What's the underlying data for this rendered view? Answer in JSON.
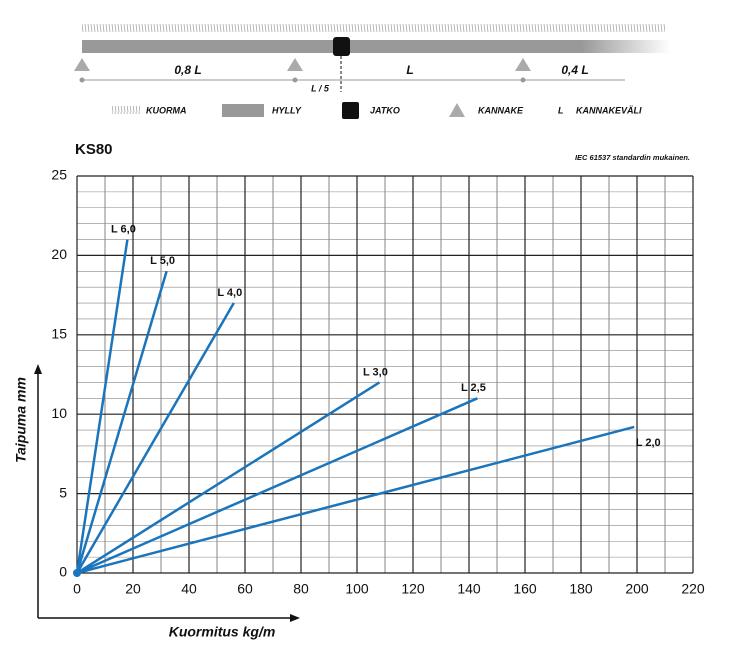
{
  "diagram": {
    "span_labels": [
      "0,8 L",
      "L",
      "0,4 L"
    ],
    "joint_offset": "L / 5",
    "legend": [
      "KUORMA",
      "HYLLY",
      "JATKO",
      "KANNAKE",
      "L",
      "KANNAKEVÄLI"
    ]
  },
  "chart_data": {
    "type": "line",
    "title": "KS80",
    "subtitle": "IEC 61537 standardin mukainen.",
    "x_label": "Kuormitus kg/m",
    "y_label": "Taipuma mm",
    "xlim": [
      0,
      220
    ],
    "xticks": [
      0,
      20,
      40,
      60,
      80,
      100,
      120,
      140,
      160,
      180,
      200,
      220
    ],
    "ylim": [
      0,
      25
    ],
    "yticks": [
      0,
      5,
      10,
      15,
      20,
      25
    ],
    "grid": true,
    "minor_grid": {
      "x": 10,
      "y": 1
    },
    "series": [
      {
        "name": "L 6,0",
        "color": "#1b75bc",
        "x": [
          0,
          18
        ],
        "values": [
          0,
          21
        ]
      },
      {
        "name": "L 5,0",
        "color": "#1b75bc",
        "x": [
          0,
          32
        ],
        "values": [
          0,
          19
        ]
      },
      {
        "name": "L 4,0",
        "color": "#1b75bc",
        "x": [
          0,
          56
        ],
        "values": [
          0,
          17
        ]
      },
      {
        "name": "L 3,0",
        "color": "#1b75bc",
        "x": [
          0,
          108
        ],
        "values": [
          0,
          12
        ]
      },
      {
        "name": "L 2,5",
        "color": "#1b75bc",
        "x": [
          0,
          143
        ],
        "values": [
          0,
          11
        ]
      },
      {
        "name": "L 2,0",
        "color": "#1b75bc",
        "x": [
          0,
          199
        ],
        "values": [
          0,
          9.2
        ]
      }
    ]
  }
}
